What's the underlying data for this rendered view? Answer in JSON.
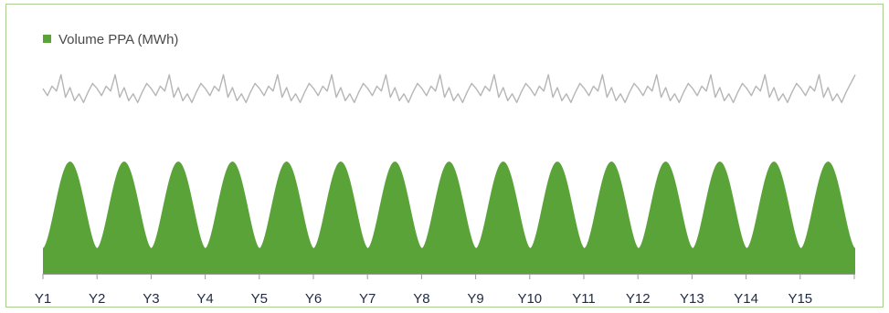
{
  "chart_data": {
    "type": "area",
    "legend": {
      "position": "top-left",
      "entries": [
        {
          "label": "Volume PPA (MWh)",
          "color": "#5aa339"
        }
      ]
    },
    "categories": [
      "Y1",
      "Y2",
      "Y3",
      "Y4",
      "Y5",
      "Y6",
      "Y7",
      "Y8",
      "Y9",
      "Y10",
      "Y11",
      "Y12",
      "Y13",
      "Y14",
      "Y15"
    ],
    "series": [
      {
        "name": "Volume PPA (MWh)",
        "type": "area",
        "color": "#5aa339",
        "pattern": "seasonal",
        "cycles": 15,
        "peak_relative": 1.0,
        "trough_relative": 0.12
      },
      {
        "type": "line",
        "color": "#b5b5b5",
        "pattern": "jagged-seasonal",
        "cycles": 15
      }
    ],
    "grid": false,
    "y_axis_visible": false
  }
}
